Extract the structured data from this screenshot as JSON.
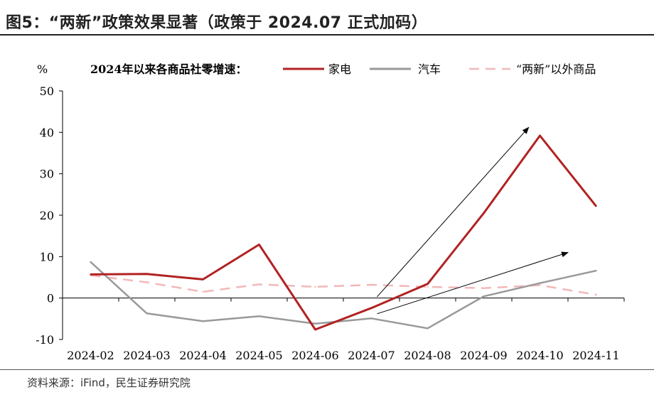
{
  "figure": {
    "title": "图5：“两新”政策效果显著（政策于 2024.07 正式加码）",
    "source": "资料来源：iFind，民生证券研究院"
  },
  "chart_data": {
    "type": "line",
    "legend_title": "2024年以来各商品社零增速：",
    "ylabel": "%",
    "xlabel": "",
    "ylim": [
      -10,
      50
    ],
    "yticks": [
      -10,
      0,
      10,
      20,
      30,
      40,
      50
    ],
    "categories": [
      "2024-02",
      "2024-03",
      "2024-04",
      "2024-05",
      "2024-06",
      "2024-07",
      "2024-08",
      "2024-09",
      "2024-10",
      "2024-11"
    ],
    "series": [
      {
        "name": "家电",
        "color": "#B22222",
        "style": "solid",
        "values": [
          5.7,
          5.8,
          4.5,
          12.9,
          -7.6,
          -2.4,
          3.4,
          20.5,
          39.2,
          22.2
        ]
      },
      {
        "name": "汽车",
        "color": "#999999",
        "style": "solid",
        "values": [
          8.7,
          -3.7,
          -5.6,
          -4.4,
          -6.2,
          -4.9,
          -7.3,
          0.4,
          3.6,
          6.6
        ]
      },
      {
        "name": "“两新”以外商品",
        "color": "#F2B8B8",
        "style": "dashed",
        "values": [
          5.5,
          3.8,
          1.5,
          3.3,
          2.7,
          3.2,
          2.7,
          2.4,
          3.1,
          0.8
        ]
      }
    ],
    "arrows": [
      {
        "from": [
          5.1,
          0.3
        ],
        "to": [
          7.8,
          41.2
        ]
      },
      {
        "from": [
          5.1,
          -3.8
        ],
        "to": [
          8.5,
          11.0
        ]
      }
    ],
    "grid": false,
    "legend_position": "top"
  }
}
